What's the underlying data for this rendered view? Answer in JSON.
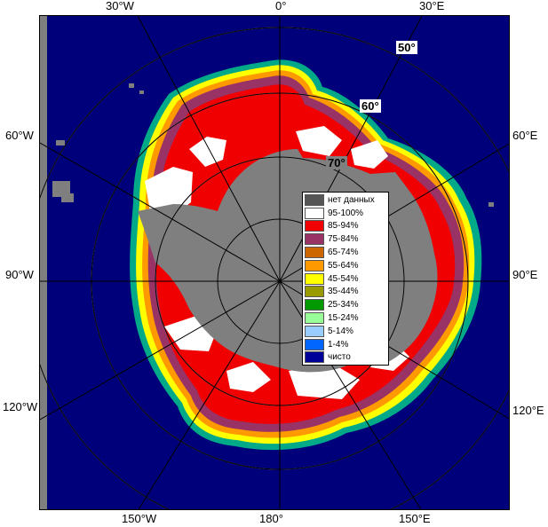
{
  "map": {
    "latitude_labels": [
      "50°",
      "60°",
      "70°"
    ],
    "longitude_labels": {
      "top": [
        "30°W",
        "0°",
        "30°E"
      ],
      "left": [
        "60°W",
        "90°W",
        "120°W"
      ],
      "right": [
        "60°E",
        "90°E",
        "120°E"
      ],
      "bottom": [
        "150°W",
        "180°",
        "150°E"
      ]
    }
  },
  "legend": {
    "items": [
      {
        "label": "нет данных",
        "color": "#555555"
      },
      {
        "label": "95-100%",
        "color": "#ffffff"
      },
      {
        "label": "85-94%",
        "color": "#f00000"
      },
      {
        "label": "75-84%",
        "color": "#993366"
      },
      {
        "label": "65-74%",
        "color": "#cc6600"
      },
      {
        "label": "55-64%",
        "color": "#ff9900"
      },
      {
        "label": "45-54%",
        "color": "#ffff00"
      },
      {
        "label": "35-44%",
        "color": "#999900"
      },
      {
        "label": "25-34%",
        "color": "#009900"
      },
      {
        "label": "15-24%",
        "color": "#99ff99"
      },
      {
        "label": "5-14%",
        "color": "#99ccff"
      },
      {
        "label": "1-4%",
        "color": "#0066ff"
      },
      {
        "label": "чисто",
        "color": "#000099"
      }
    ]
  },
  "colors": {
    "ocean": "#00007a",
    "land": "#7f7f7f",
    "no_data_margin": "#7f7f7f",
    "grid": "#b0b0b0"
  }
}
